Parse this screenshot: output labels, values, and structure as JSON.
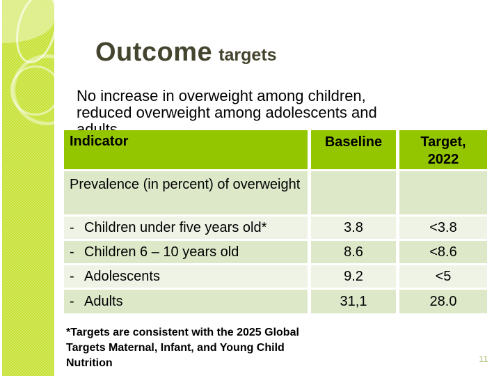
{
  "slide": {
    "title_main": "Outcome",
    "title_sub": "targets",
    "subtitle_lines": [
      "No increase in overweight among children,",
      "reduced overweight among adolescents and",
      "adults"
    ],
    "page_number": "11"
  },
  "table": {
    "headers": {
      "indicator": "Indicator",
      "baseline": "Baseline",
      "target_line1": "Target,",
      "target_line2": "2022"
    },
    "rows": [
      {
        "dash": "",
        "indicator": "Prevalence (in percent) of overweight",
        "baseline": "",
        "target": ""
      },
      {
        "dash": "-",
        "indicator": "Children under five years old*",
        "baseline": "3.8",
        "target": "<3.8"
      },
      {
        "dash": "-",
        "indicator": "Children 6 – 10 years old",
        "baseline": "8.6",
        "target": "<8.6"
      },
      {
        "dash": "-",
        "indicator": "Adolescents",
        "baseline": "9.2",
        "target": "<5"
      },
      {
        "dash": "-",
        "indicator": "Adults",
        "baseline": "31,1",
        "target": "28.0"
      }
    ]
  },
  "footnote_lines": [
    "*Targets are consistent with the 2025 Global",
    "Targets Maternal, Infant, and Young Child",
    "Nutrition"
  ],
  "colors": {
    "header_green": "#94c600",
    "row_dark": "#dde8c9",
    "row_light": "#eff3e6",
    "sidebar_lime": "#cbe23f",
    "title_olive": "#45452f",
    "page_number_green": "#a9bf6e"
  }
}
